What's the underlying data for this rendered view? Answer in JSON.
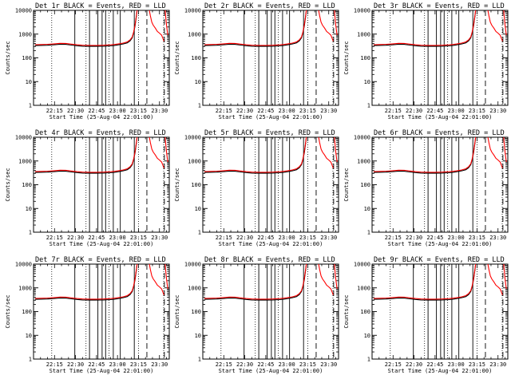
{
  "chart_data": {
    "type": "line",
    "layout": "3x3 grid",
    "panel_titles": [
      "Det 1r BLACK = Events, RED = LLD",
      "Det 2r BLACK = Events, RED = LLD",
      "Det 3r BLACK = Events, RED = LLD",
      "Det 4r BLACK = Events, RED = LLD",
      "Det 5r BLACK = Events, RED = LLD",
      "Det 6r BLACK = Events, RED = LLD",
      "Det 7r BLACK = Events, RED = LLD",
      "Det 8r BLACK = Events, RED = LLD",
      "Det 9r BLACK = Events, RED = LLD"
    ],
    "xlabel": "Start Time (25-Aug-04 22:01:00)",
    "ylabel": "Counts/sec",
    "yscale": "log",
    "ylim": [
      1,
      10000
    ],
    "xlim_minutes_after_22_00": [
      0,
      97
    ],
    "x_tick_labels": [
      "22:15",
      "22:30",
      "22:45",
      "23:00",
      "23:15",
      "23:30"
    ],
    "x_tick_minutes": [
      15,
      30,
      45,
      60,
      75,
      90
    ],
    "y_tick_labels": [
      "1",
      "10",
      "100",
      "1000",
      "10000"
    ],
    "y_tick_values": [
      1,
      10,
      100,
      1000,
      10000
    ],
    "dotted_lines_minutes": [
      13,
      37.5,
      54,
      75,
      93
    ],
    "solid_lines_minutes": [
      29.5,
      40,
      46,
      49,
      51.5,
      57,
      62,
      72
    ],
    "dashed_lines_minutes": [
      81,
      93.5
    ],
    "series": [
      {
        "name": "Events",
        "color": "#000000",
        "points": [
          [
            1,
            330
          ],
          [
            5,
            335
          ],
          [
            10,
            340
          ],
          [
            15,
            355
          ],
          [
            19,
            375
          ],
          [
            23,
            370
          ],
          [
            27,
            345
          ],
          [
            31,
            325
          ],
          [
            35,
            310
          ],
          [
            40,
            305
          ],
          [
            45,
            305
          ],
          [
            50,
            310
          ],
          [
            55,
            320
          ],
          [
            58,
            335
          ],
          [
            61,
            355
          ],
          [
            64,
            385
          ],
          [
            67,
            430
          ],
          [
            69,
            520
          ],
          [
            70.5,
            700
          ],
          [
            71.5,
            1100
          ],
          [
            72.5,
            2200
          ],
          [
            73.5,
            5500
          ],
          [
            74.2,
            12000
          ]
        ]
      },
      {
        "name": "LLD",
        "color": "#ff0000",
        "points": [
          [
            1,
            360
          ],
          [
            5,
            365
          ],
          [
            10,
            372
          ],
          [
            15,
            390
          ],
          [
            19,
            410
          ],
          [
            23,
            405
          ],
          [
            27,
            378
          ],
          [
            31,
            355
          ],
          [
            35,
            340
          ],
          [
            40,
            335
          ],
          [
            45,
            335
          ],
          [
            50,
            340
          ],
          [
            55,
            352
          ],
          [
            58,
            368
          ],
          [
            61,
            390
          ],
          [
            64,
            420
          ],
          [
            67,
            470
          ],
          [
            69,
            570
          ],
          [
            70.5,
            760
          ],
          [
            71.5,
            1200
          ],
          [
            72.5,
            2400
          ],
          [
            73.5,
            6000
          ],
          [
            74.2,
            12000
          ]
        ]
      },
      {
        "name": "LLD",
        "color": "#ff0000",
        "points": [
          [
            82.5,
            12000
          ],
          [
            83.5,
            6000
          ],
          [
            84.5,
            3200
          ],
          [
            85.5,
            2400
          ],
          [
            87,
            1800
          ],
          [
            88.5,
            1300
          ],
          [
            90,
            1100
          ],
          [
            91.5,
            900
          ],
          [
            92.5,
            650
          ],
          [
            93.2,
            500
          ]
        ]
      },
      {
        "name": "LLD",
        "color": "#ff0000",
        "points": [
          [
            94,
            12000
          ],
          [
            94.5,
            5000
          ],
          [
            95,
            2500
          ],
          [
            95.5,
            1400
          ],
          [
            96,
            900
          ]
        ]
      }
    ]
  }
}
